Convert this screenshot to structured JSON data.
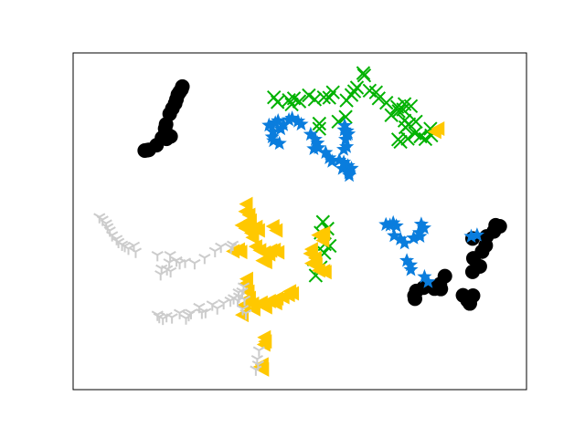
{
  "chart_data": {
    "type": "scatter",
    "title": "",
    "xlabel": "",
    "ylabel": "",
    "xlim": [
      0,
      100
    ],
    "ylim": [
      0,
      100
    ],
    "axis_ticks": false,
    "grid": false,
    "legend": "none",
    "series": [
      {
        "marker": "circle",
        "color": "#000000",
        "points": [
          [
            24.1,
            90.0
          ],
          [
            23.9,
            89.2
          ],
          [
            23.5,
            88.4
          ],
          [
            23.1,
            87.6
          ],
          [
            22.8,
            86.2
          ],
          [
            22.5,
            85.0
          ],
          [
            21.9,
            83.5
          ],
          [
            21.3,
            81.9
          ],
          [
            20.5,
            78.8
          ],
          [
            20.3,
            77.5
          ],
          [
            20.7,
            75.6
          ],
          [
            21.5,
            75.2
          ],
          [
            20.6,
            74.5
          ],
          [
            19.6,
            74.8
          ],
          [
            18.4,
            72.6
          ],
          [
            16.7,
            71.2
          ],
          [
            15.8,
            71.0
          ],
          [
            16.3,
            71.1
          ]
        ]
      },
      {
        "marker": "circle",
        "color": "#000000",
        "points": [
          [
            94.1,
            48.5
          ],
          [
            93.2,
            48.8
          ],
          [
            92.8,
            47.0
          ],
          [
            91.2,
            45.5
          ],
          [
            88.1,
            44.9
          ],
          [
            91.0,
            42.8
          ],
          [
            90.2,
            41.0
          ],
          [
            88.3,
            39.0
          ],
          [
            89.7,
            36.6
          ],
          [
            88.1,
            35.0
          ],
          [
            82.0,
            33.7
          ],
          [
            80.9,
            31.3
          ],
          [
            79.7,
            30.0
          ],
          [
            81.1,
            29.9
          ],
          [
            77.3,
            30.3
          ],
          [
            75.7,
            29.3
          ],
          [
            75.3,
            27.9
          ],
          [
            75.4,
            27.0
          ],
          [
            86.0,
            28.0
          ],
          [
            88.2,
            27.9
          ],
          [
            87.5,
            25.6
          ],
          [
            87.0,
            26.5
          ]
        ]
      },
      {
        "marker": "x",
        "color": "#00b200",
        "points": [
          [
            64.0,
            94.0
          ],
          [
            64.2,
            93.3
          ],
          [
            62.6,
            89.7
          ],
          [
            65.4,
            88.8
          ],
          [
            66.8,
            88.3
          ],
          [
            57.3,
            88.3
          ],
          [
            56.5,
            86.7
          ],
          [
            52.0,
            87.4
          ],
          [
            53.3,
            86.2
          ],
          [
            55.3,
            86.8
          ],
          [
            49.9,
            85.6
          ],
          [
            48.7,
            86.5
          ],
          [
            48.2,
            84.7
          ],
          [
            47.6,
            86.0
          ],
          [
            45.1,
            85.4
          ],
          [
            44.3,
            86.8
          ],
          [
            61.4,
            87.5
          ],
          [
            60.3,
            85.9
          ],
          [
            62.0,
            88.6
          ],
          [
            67.4,
            86.5
          ],
          [
            69.1,
            85.2
          ],
          [
            71.5,
            84.0
          ],
          [
            73.1,
            84.8
          ],
          [
            74.5,
            84.2
          ],
          [
            72.8,
            83.2
          ],
          [
            71.8,
            82.7
          ],
          [
            70.2,
            81.5
          ],
          [
            73.1,
            79.9
          ],
          [
            74.1,
            78.8
          ],
          [
            75.6,
            79.6
          ],
          [
            73.3,
            77.9
          ],
          [
            71.7,
            74.3
          ],
          [
            72.2,
            73.6
          ],
          [
            73.8,
            74.5
          ],
          [
            75.4,
            76.1
          ],
          [
            76.6,
            75.2
          ],
          [
            77.7,
            74.4
          ],
          [
            79.0,
            75.5
          ],
          [
            78.8,
            77.5
          ],
          [
            60.1,
            81.0
          ],
          [
            58.5,
            79.6
          ],
          [
            54.3,
            79.0
          ],
          [
            54.3,
            77.5
          ],
          [
            55.1,
            49.8
          ],
          [
            56.1,
            47.8
          ],
          [
            54.6,
            46.6
          ],
          [
            55.5,
            43.2
          ],
          [
            56.6,
            42.7
          ],
          [
            55.4,
            40.6
          ],
          [
            53.1,
            38.7
          ],
          [
            54.6,
            36.3
          ],
          [
            53.5,
            33.9
          ]
        ]
      },
      {
        "marker": "star",
        "color": "#0a7ddd",
        "points": [
          [
            43.2,
            78.5
          ],
          [
            44.6,
            79.2
          ],
          [
            45.2,
            79.8
          ],
          [
            46.4,
            78.6
          ],
          [
            47.6,
            80.1
          ],
          [
            48.3,
            80.6
          ],
          [
            49.6,
            79.7
          ],
          [
            50.3,
            78.8
          ],
          [
            45.8,
            77.4
          ],
          [
            44.1,
            76.6
          ],
          [
            43.9,
            75.0
          ],
          [
            44.2,
            73.9
          ],
          [
            45.5,
            73.1
          ],
          [
            52.4,
            75.8
          ],
          [
            53.4,
            74.3
          ],
          [
            53.9,
            73.2
          ],
          [
            54.1,
            71.8
          ],
          [
            53.1,
            71.5
          ],
          [
            55.7,
            70.4
          ],
          [
            56.5,
            68.8
          ],
          [
            57.1,
            67.8
          ],
          [
            58.7,
            68.1
          ],
          [
            59.7,
            67.5
          ],
          [
            60.6,
            66.5
          ],
          [
            59.4,
            65.6
          ],
          [
            60.8,
            65.1
          ],
          [
            61.4,
            65.7
          ],
          [
            60.8,
            64.4
          ],
          [
            60.9,
            63.6
          ],
          [
            60.4,
            75.6
          ],
          [
            59.8,
            77.1
          ],
          [
            60.1,
            74.3
          ],
          [
            60.3,
            72.1
          ],
          [
            59.7,
            71.3
          ],
          [
            60.4,
            76.8
          ],
          [
            59.9,
            78.4
          ],
          [
            60.7,
            75.9
          ],
          [
            69.0,
            49.0
          ],
          [
            69.9,
            48.8
          ],
          [
            70.6,
            49.5
          ],
          [
            71.3,
            48.6
          ],
          [
            70.8,
            45.7
          ],
          [
            72.2,
            44.7
          ],
          [
            73.1,
            43.5
          ],
          [
            75.1,
            45.0
          ],
          [
            76.4,
            46.6
          ],
          [
            77.4,
            48.0
          ],
          [
            76.8,
            49.1
          ],
          [
            76.5,
            45.5
          ],
          [
            73.6,
            38.3
          ],
          [
            74.4,
            37.0
          ],
          [
            74.5,
            35.6
          ],
          [
            77.5,
            33.5
          ],
          [
            78.3,
            32.0
          ],
          [
            87.8,
            45.5
          ],
          [
            89.1,
            45.9
          ]
        ]
      },
      {
        "marker": "triangle-left",
        "color": "#ffc800",
        "points": [
          [
            80.5,
            77.5
          ],
          [
            79.8,
            76.6
          ],
          [
            38.2,
            55.1
          ],
          [
            38.0,
            52.9
          ],
          [
            38.8,
            51.9
          ],
          [
            39.1,
            50.2
          ],
          [
            39.0,
            48.3
          ],
          [
            39.3,
            46.5
          ],
          [
            39.6,
            45.2
          ],
          [
            38.0,
            47.9
          ],
          [
            37.2,
            48.8
          ],
          [
            40.4,
            48.3
          ],
          [
            40.9,
            47.3
          ],
          [
            44.1,
            48.5
          ],
          [
            44.8,
            47.3
          ],
          [
            40.3,
            42.5
          ],
          [
            41.2,
            41.4
          ],
          [
            42.2,
            40.7
          ],
          [
            43.2,
            40.2
          ],
          [
            43.6,
            41.3
          ],
          [
            44.4,
            41.5
          ],
          [
            45.2,
            40.8
          ],
          [
            41.8,
            38.3
          ],
          [
            42.5,
            37.9
          ],
          [
            36.5,
            41.6
          ],
          [
            37.0,
            40.9
          ],
          [
            35.3,
            41.1
          ],
          [
            54.1,
            45.9
          ],
          [
            55.3,
            46.5
          ],
          [
            55.1,
            44.3
          ],
          [
            52.6,
            41.7
          ],
          [
            52.3,
            40.4
          ],
          [
            53.4,
            39.1
          ],
          [
            52.6,
            37.5
          ],
          [
            53.6,
            37.2
          ],
          [
            54.2,
            35.4
          ],
          [
            55.3,
            35.2
          ],
          [
            55.6,
            34.9
          ],
          [
            38.3,
            32.9
          ],
          [
            38.0,
            31.4
          ],
          [
            38.6,
            29.1
          ],
          [
            38.9,
            27.2
          ],
          [
            37.7,
            25.1
          ],
          [
            37.3,
            22.2
          ],
          [
            39.6,
            25.5
          ],
          [
            39.9,
            23.9
          ],
          [
            41.5,
            25.8
          ],
          [
            42.5,
            24.5
          ],
          [
            43.3,
            26.3
          ],
          [
            44.7,
            25.7
          ],
          [
            45.0,
            27.1
          ],
          [
            46.3,
            27.5
          ],
          [
            47.5,
            28.1
          ],
          [
            47.8,
            29.2
          ],
          [
            48.4,
            28.6
          ],
          [
            42.2,
            15.5
          ],
          [
            42.4,
            14.3
          ],
          [
            42.1,
            13.4
          ],
          [
            41.7,
            7.5
          ],
          [
            41.8,
            6.0
          ],
          [
            41.3,
            6.8
          ]
        ]
      },
      {
        "marker": "tri",
        "color": "#cccccc",
        "points": [
          [
            5.8,
            51.3
          ],
          [
            6.5,
            50.5
          ],
          [
            7.3,
            49.4
          ],
          [
            7.6,
            48.3
          ],
          [
            8.1,
            47.3
          ],
          [
            8.6,
            45.9
          ],
          [
            9.6,
            44.8
          ],
          [
            10.0,
            43.9
          ],
          [
            10.8,
            43.1
          ],
          [
            11.4,
            42.7
          ],
          [
            12.2,
            41.9
          ],
          [
            13.4,
            42.8
          ],
          [
            13.8,
            41.0
          ],
          [
            18.6,
            40.0
          ],
          [
            21.4,
            40.0
          ],
          [
            22.8,
            38.4
          ],
          [
            23.5,
            37.6
          ],
          [
            24.7,
            38.0
          ],
          [
            26.8,
            37.6
          ],
          [
            29.0,
            39.2
          ],
          [
            31.3,
            41.2
          ],
          [
            32.6,
            42.5
          ],
          [
            34.8,
            42.3
          ],
          [
            35.2,
            43.1
          ],
          [
            21.2,
            37.8
          ],
          [
            21.5,
            35.2
          ],
          [
            20.7,
            35.8
          ],
          [
            19.5,
            36.0
          ],
          [
            19.3,
            34.3
          ],
          [
            37.6,
            30.7
          ],
          [
            37.3,
            29.2
          ],
          [
            37.8,
            26.8
          ],
          [
            37.4,
            24.0
          ],
          [
            38.1,
            22.7
          ],
          [
            36.3,
            26.5
          ],
          [
            36.5,
            28.9
          ],
          [
            36.6,
            27.7
          ],
          [
            35.4,
            27.2
          ],
          [
            34.7,
            26.5
          ],
          [
            33.2,
            25.7
          ],
          [
            31.8,
            24.2
          ],
          [
            30.7,
            25.3
          ],
          [
            29.2,
            23.1
          ],
          [
            28.4,
            22.9
          ],
          [
            27.8,
            24.6
          ],
          [
            26.0,
            22.8
          ],
          [
            25.5,
            22.2
          ],
          [
            24.9,
            21.2
          ],
          [
            23.5,
            22.8
          ],
          [
            21.8,
            21.5
          ],
          [
            20.6,
            21.9
          ],
          [
            19.8,
            21.1
          ],
          [
            19.0,
            21.6
          ],
          [
            18.6,
            22.3
          ],
          [
            41.0,
            11.7
          ],
          [
            40.6,
            9.1
          ],
          [
            40.8,
            7.5
          ],
          [
            40.3,
            6.0
          ]
        ]
      }
    ]
  }
}
